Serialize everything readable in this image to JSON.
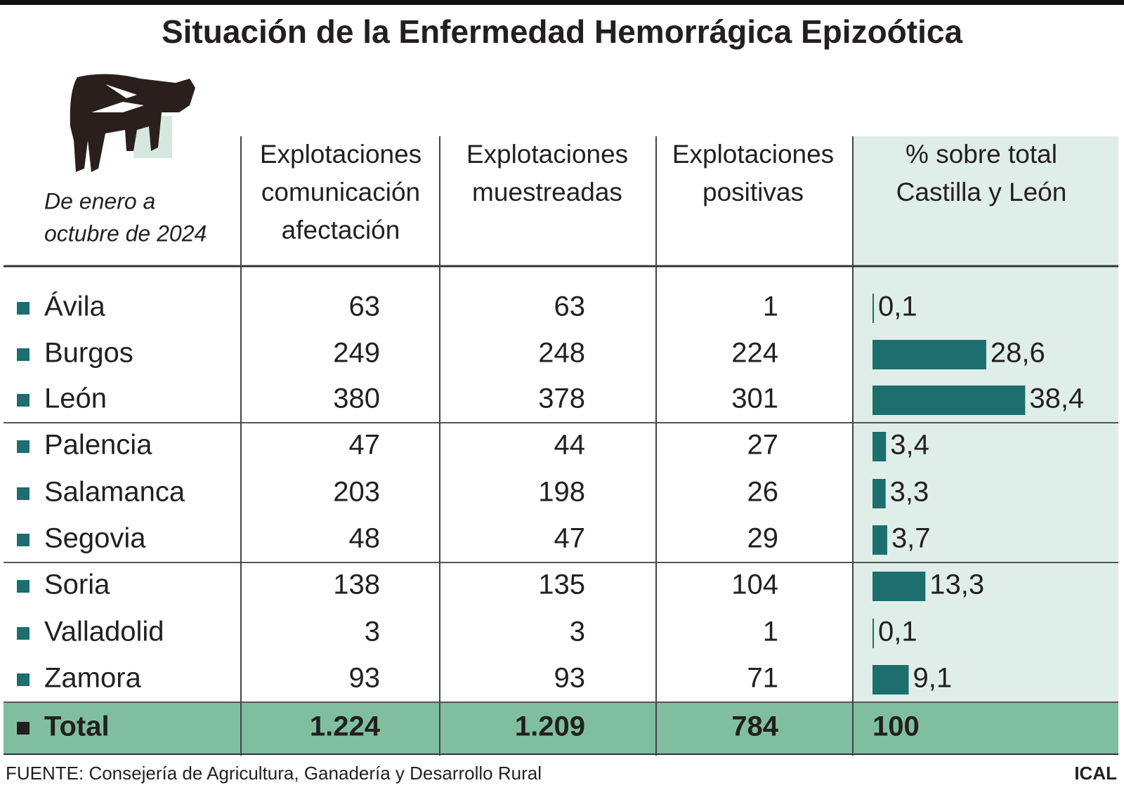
{
  "title": "Situación de la Enfermedad Hemorrágica Epizoótica",
  "subtitle": [
    "De enero a",
    "octubre de 2024"
  ],
  "headers": [
    [
      "Explotaciones",
      "comunicación",
      "afectación"
    ],
    [
      "Explotaciones",
      "muestreadas"
    ],
    [
      "Explotaciones",
      "positivas"
    ],
    [
      "% sobre total",
      "Castilla y León"
    ]
  ],
  "rows": [
    {
      "name": "Ávila",
      "cells": [
        "63",
        "63",
        "1"
      ],
      "percent": 0.1,
      "percent_label": "0,1"
    },
    {
      "name": "Burgos",
      "cells": [
        "249",
        "248",
        "224"
      ],
      "percent": 28.6,
      "percent_label": "28,6"
    },
    {
      "name": "León",
      "cells": [
        "380",
        "378",
        "301"
      ],
      "percent": 38.4,
      "percent_label": "38,4"
    },
    {
      "name": "Palencia",
      "cells": [
        "47",
        "44",
        "27"
      ],
      "percent": 3.4,
      "percent_label": "3,4"
    },
    {
      "name": "Salamanca",
      "cells": [
        "203",
        "198",
        "26"
      ],
      "percent": 3.3,
      "percent_label": "3,3"
    },
    {
      "name": "Segovia",
      "cells": [
        "48",
        "47",
        "29"
      ],
      "percent": 3.7,
      "percent_label": "3,7"
    },
    {
      "name": "Soria",
      "cells": [
        "138",
        "135",
        "104"
      ],
      "percent": 13.3,
      "percent_label": "13,3"
    },
    {
      "name": "Valladolid",
      "cells": [
        "3",
        "3",
        "1"
      ],
      "percent": 0.1,
      "percent_label": "0,1"
    },
    {
      "name": "Zamora",
      "cells": [
        "93",
        "93",
        "71"
      ],
      "percent": 9.1,
      "percent_label": "9,1"
    }
  ],
  "total": {
    "name": "Total",
    "cells": [
      "1.224",
      "1.209",
      "784",
      "100"
    ]
  },
  "source": "FUENTE: Consejería de Agricultura, Ganadería y Desarrollo Rural",
  "credit": "ICAL"
}
